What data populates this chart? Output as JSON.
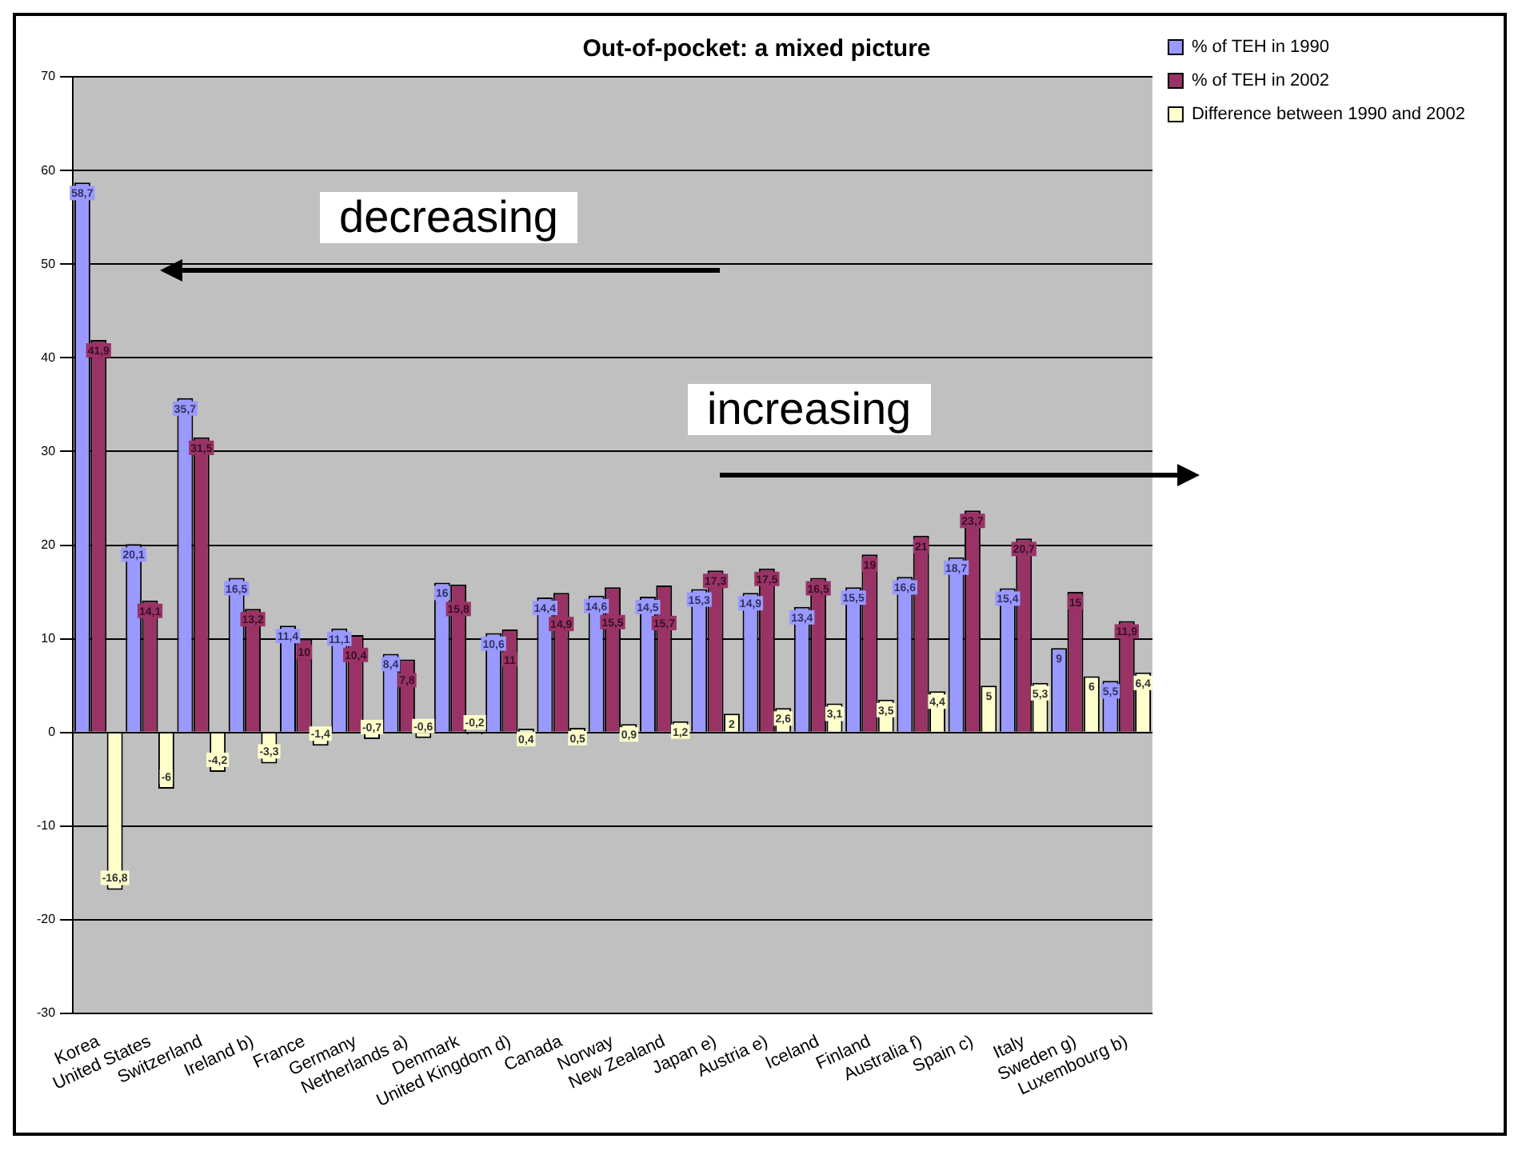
{
  "chart_data": {
    "type": "bar",
    "title": "Out-of-pocket: a mixed picture",
    "categories": [
      "Korea",
      "United States",
      "Switzerland",
      "Ireland b)",
      "France",
      "Germany",
      "Netherlands a)",
      "Denmark",
      "United Kingdom d)",
      "Canada",
      "Norway",
      "New Zealand",
      "Japan e)",
      "Austria e)",
      "Iceland",
      "Finland",
      "Australia f)",
      "Spain c)",
      "Italy",
      "Sweden g)",
      "Luxembourg b)"
    ],
    "series": [
      {
        "name": "% of TEH in 1990",
        "color": "#9999ff",
        "values": [
          58.7,
          20.1,
          35.7,
          16.5,
          11.4,
          11.1,
          8.4,
          16,
          10.6,
          14.4,
          14.6,
          14.5,
          15.3,
          14.9,
          13.4,
          15.5,
          16.6,
          18.7,
          15.4,
          9,
          5.5
        ],
        "value_labels": [
          "58,7",
          "20,1",
          "35,7",
          "16,5",
          "11,4",
          "11,1",
          "8,4",
          "16",
          "10,6",
          "14,4",
          "14,6",
          "14,5",
          "15,3",
          "14,9",
          "13,4",
          "15,5",
          "16,6",
          "18,7",
          "15,4",
          "9",
          "5,5"
        ]
      },
      {
        "name": "% of TEH in 2002",
        "color": "#993366",
        "values": [
          41.9,
          14.1,
          31.5,
          13.2,
          10,
          10.4,
          7.8,
          15.8,
          11,
          14.9,
          15.5,
          15.7,
          17.3,
          17.5,
          16.5,
          19,
          21,
          23.7,
          20.7,
          15,
          11.9
        ],
        "value_labels": [
          "41,9",
          "14,1",
          "31,5",
          "13,2",
          "10",
          "10,4",
          "7,8",
          "15,8",
          "11",
          "14,9",
          "15,5",
          "15,7",
          "17,3",
          "17,5",
          "16,5",
          "19",
          "21",
          "23,7",
          "20,7",
          "15",
          "11,9"
        ]
      },
      {
        "name": "Difference between 1990 and 2002",
        "color": "#ffffcc",
        "values": [
          -16.8,
          -6,
          -4.2,
          -3.3,
          -1.4,
          -0.7,
          -0.6,
          -0.2,
          0.4,
          0.5,
          0.9,
          1.2,
          2,
          2.6,
          3.1,
          3.5,
          4.4,
          5,
          5.3,
          6,
          6.4
        ],
        "value_labels": [
          "-16,8",
          "-6",
          "-4,2",
          "-3,3",
          "-1,4",
          "-0,7",
          "-0,6",
          "-0,2",
          "0,4",
          "0,5",
          "0,9",
          "1,2",
          "2",
          "2,6",
          "3,1",
          "3,5",
          "4,4",
          "5",
          "5,3",
          "6",
          "6,4"
        ]
      }
    ],
    "ylim": [
      -30,
      70
    ],
    "yticks": [
      -30,
      -20,
      -10,
      0,
      10,
      20,
      30,
      40,
      50,
      60,
      70
    ],
    "grid": "y",
    "legend": "top right",
    "annotations": [
      "decreasing",
      "increasing"
    ]
  }
}
